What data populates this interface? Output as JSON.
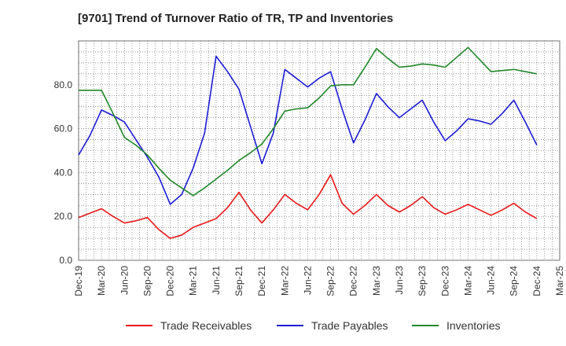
{
  "chart_data": {
    "type": "line",
    "title": "[9701]  Trend of Turnover Ratio of TR, TP and Inventories",
    "xlabel": "",
    "ylabel": "",
    "ylim": [
      0,
      100
    ],
    "yticks": [
      0.0,
      20.0,
      40.0,
      60.0,
      80.0
    ],
    "ytick_labels": [
      "0.0",
      "20.0",
      "40.0",
      "60.0",
      "80.0"
    ],
    "x_ticks": [
      "Dec-19",
      "Mar-20",
      "Jun-20",
      "Sep-20",
      "Dec-20",
      "Mar-21",
      "Jun-21",
      "Sep-21",
      "Dec-21",
      "Mar-22",
      "Jun-22",
      "Sep-22",
      "Dec-22",
      "Mar-23",
      "Jun-23",
      "Sep-23",
      "Dec-23",
      "Mar-24",
      "Jun-24",
      "Sep-24",
      "Dec-24",
      "Mar-25"
    ],
    "grid": true,
    "legend_position": "bottom",
    "series": [
      {
        "name": "Trade Receivables",
        "color": "#e8191b",
        "values": [
          19.5,
          21.5,
          23.5,
          20.0,
          17.0,
          18.0,
          19.5,
          14.0,
          10.0,
          11.5,
          15.0,
          17.0,
          19.0,
          24.0,
          31.0,
          23.0,
          17.0,
          23.0,
          30.0,
          26.0,
          23.0,
          30.0,
          39.0,
          26.0,
          21.0,
          25.0,
          30.0,
          25.0,
          22.0,
          25.0,
          29.0,
          24.0,
          21.0,
          23.0,
          25.5,
          23.0,
          20.5,
          23.0,
          26.0,
          22.0,
          19.0
        ]
      },
      {
        "name": "Trade Payables",
        "color": "#1c1cd6",
        "values": [
          48.0,
          57.0,
          68.5,
          66.0,
          63.0,
          55.0,
          47.0,
          38.0,
          25.5,
          30.0,
          42.0,
          58.0,
          93.0,
          86.0,
          78.0,
          61.0,
          44.0,
          58.0,
          87.0,
          83.0,
          79.0,
          83.0,
          86.0,
          69.0,
          53.5,
          64.0,
          76.0,
          70.0,
          65.0,
          69.0,
          73.0,
          63.0,
          54.5,
          59.0,
          64.5,
          63.5,
          62.0,
          67.0,
          73.0,
          63.0,
          52.5
        ]
      },
      {
        "name": "Inventories",
        "color": "#22882a",
        "values": [
          77.5,
          77.5,
          77.5,
          67.0,
          56.0,
          52.5,
          48.0,
          42.0,
          36.5,
          33.0,
          29.5,
          33.0,
          37.0,
          41.0,
          45.5,
          49.0,
          53.0,
          60.0,
          68.0,
          69.0,
          69.5,
          74.0,
          79.5,
          80.0,
          80.0,
          88.0,
          96.5,
          92.0,
          88.0,
          88.5,
          89.5,
          89.0,
          88.0,
          92.5,
          97.0,
          91.5,
          86.0,
          86.5,
          87.0,
          86.0,
          85.0
        ]
      }
    ]
  }
}
